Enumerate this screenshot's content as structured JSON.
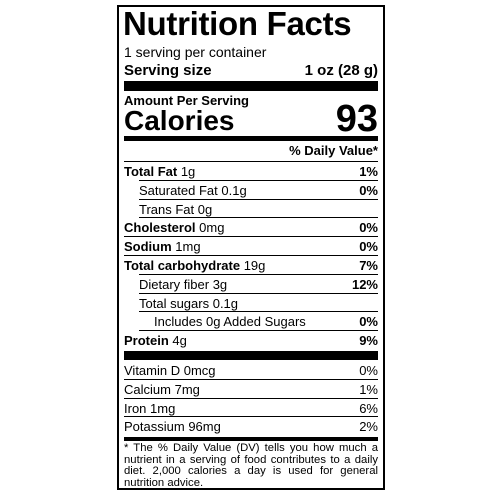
{
  "header": {
    "title": "Nutrition Facts",
    "servings": "1 serving per container",
    "serving_size_label": "Serving size",
    "serving_size_value": "1 oz (28 g)"
  },
  "calories": {
    "heading": "Amount Per Serving",
    "label": "Calories",
    "value": "93"
  },
  "daily_value_heading": "% Daily Value*",
  "nutrients": [
    {
      "name": "Total Fat",
      "amount": "1g",
      "dv": "1%",
      "sub": [
        {
          "name": "Saturated Fat",
          "amount": "0.1g",
          "dv": "0%"
        },
        {
          "name": "Trans Fat",
          "amount": "0g"
        }
      ]
    },
    {
      "name": "Cholesterol",
      "amount": "0mg",
      "dv": "0%"
    },
    {
      "name": "Sodium",
      "amount": "1mg",
      "dv": "0%"
    },
    {
      "name": "Total carbohydrate",
      "amount": "19g",
      "dv": "7%",
      "sub": [
        {
          "name": "Dietary fiber",
          "amount": "3g",
          "dv": "12%"
        },
        {
          "name": "Total sugars",
          "amount": "0.1g",
          "sub": [
            {
              "name": "Includes 0g Added Sugars",
              "dv": "0%"
            }
          ]
        }
      ]
    },
    {
      "name": "Protein",
      "amount": "4g",
      "dv": "9%"
    }
  ],
  "vitamins": [
    {
      "name": "Vitamin D",
      "amount": "0mcg",
      "dv": "0%"
    },
    {
      "name": "Calcium",
      "amount": "7mg",
      "dv": "1%"
    },
    {
      "name": "Iron",
      "amount": "1mg",
      "dv": "6%"
    },
    {
      "name": "Potassium",
      "amount": "96mg",
      "dv": "2%"
    }
  ],
  "footnote": "* The % Daily Value (DV) tells you how much a nutrient in a serving of food contributes to a daily diet. 2,000 calories a day is used for general nutrition advice."
}
